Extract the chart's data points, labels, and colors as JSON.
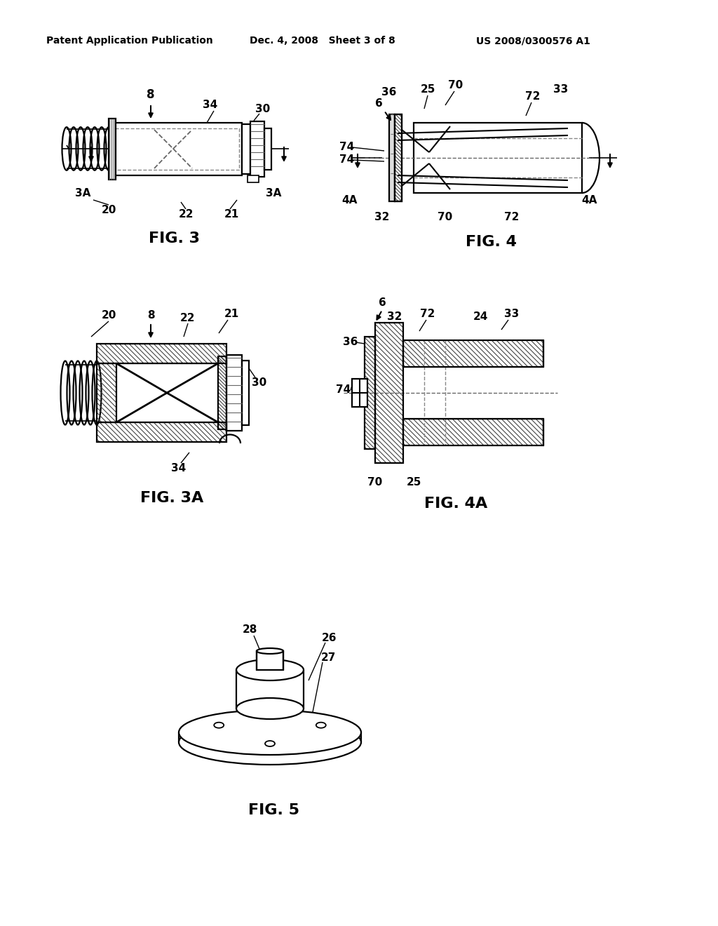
{
  "bg_color": "#ffffff",
  "header_left": "Patent Application Publication",
  "header_mid": "Dec. 4, 2008   Sheet 3 of 8",
  "header_right": "US 2008/0300576 A1",
  "fig3_caption": "FIG. 3",
  "fig4_caption": "FIG. 4",
  "fig3a_caption": "FIG. 3A",
  "fig4a_caption": "FIG. 4A",
  "fig5_caption": "FIG. 5",
  "line_color": "#000000",
  "dashed_color": "#555555",
  "hatch_lw": 0.7,
  "draw_lw": 1.6
}
